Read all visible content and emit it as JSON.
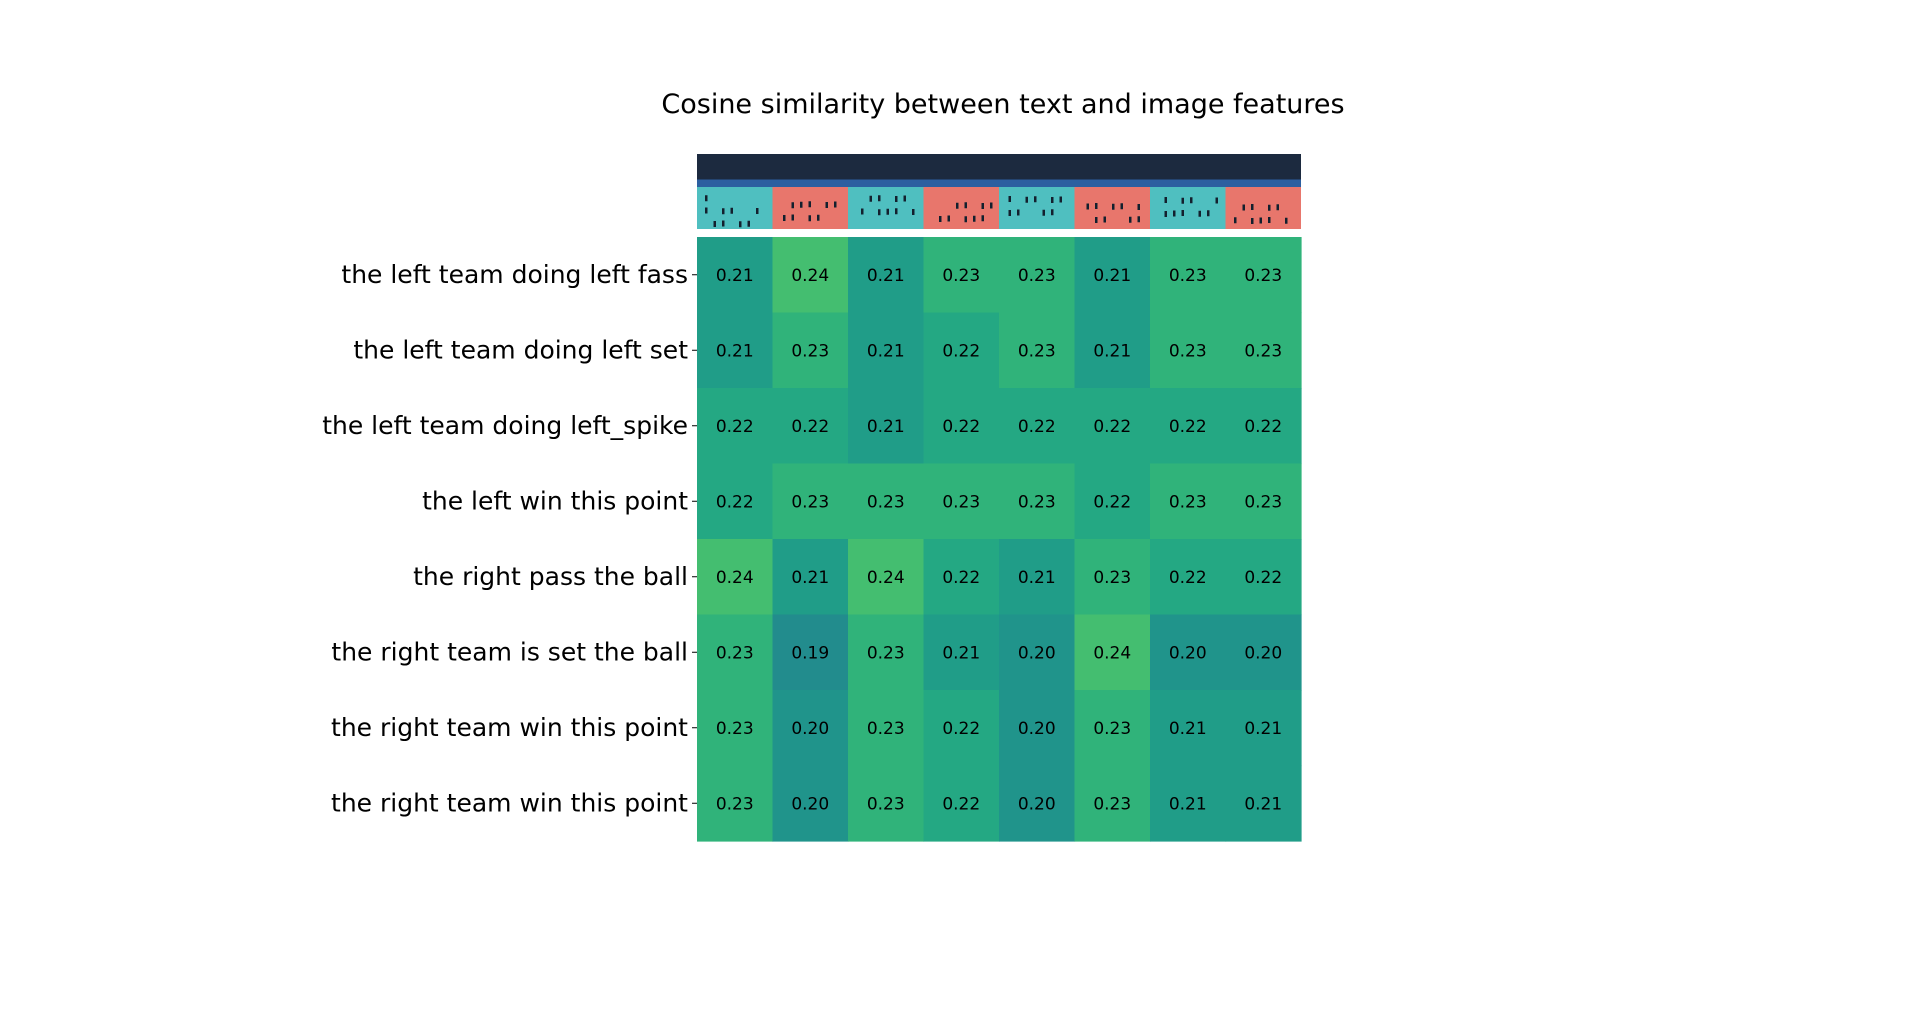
{
  "chart_data": {
    "type": "heatmap",
    "title": "Cosine similarity between text and image features",
    "rows": [
      "the left team doing left fass",
      "the left team doing left set",
      "the left team doing left_spike",
      "the left win this point",
      "the right pass the ball",
      "the right team is set the ball",
      "the right team win this point",
      "the right team win this point"
    ],
    "columns": 8,
    "values": [
      [
        0.21,
        0.24,
        0.21,
        0.23,
        0.23,
        0.21,
        0.23,
        0.23
      ],
      [
        0.21,
        0.23,
        0.21,
        0.22,
        0.23,
        0.21,
        0.23,
        0.23
      ],
      [
        0.22,
        0.22,
        0.21,
        0.22,
        0.22,
        0.22,
        0.22,
        0.22
      ],
      [
        0.22,
        0.23,
        0.23,
        0.23,
        0.23,
        0.22,
        0.23,
        0.23
      ],
      [
        0.24,
        0.21,
        0.24,
        0.22,
        0.21,
        0.23,
        0.22,
        0.22
      ],
      [
        0.23,
        0.19,
        0.23,
        0.21,
        0.2,
        0.24,
        0.2,
        0.2
      ],
      [
        0.23,
        0.2,
        0.23,
        0.22,
        0.2,
        0.23,
        0.21,
        0.21
      ],
      [
        0.23,
        0.2,
        0.23,
        0.22,
        0.2,
        0.23,
        0.21,
        0.21
      ]
    ],
    "value_format": "2 decimals",
    "colormap": "viridis",
    "column_thumbnails": [
      "volleyball-court-frame-1",
      "volleyball-court-frame-2",
      "volleyball-court-frame-3",
      "volleyball-court-frame-4",
      "volleyball-court-frame-5",
      "volleyball-court-frame-6",
      "volleyball-court-frame-7",
      "volleyball-court-frame-8"
    ],
    "grid": false,
    "legend": "none"
  }
}
